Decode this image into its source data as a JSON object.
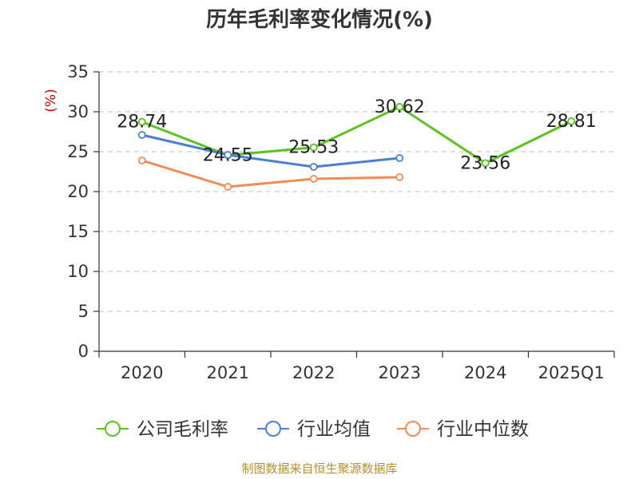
{
  "chart_data": {
    "type": "line",
    "title": "历年毛利率变化情况(%)",
    "ylabel": "(%)",
    "xlabel": "",
    "categories": [
      "2020",
      "2021",
      "2022",
      "2023",
      "2024",
      "2025Q1"
    ],
    "ylim": [
      0,
      35
    ],
    "yticks": [
      0,
      5,
      10,
      15,
      20,
      25,
      30,
      35
    ],
    "grid": "horizontal-dashed",
    "legend_position": "bottom",
    "series": [
      {
        "name": "公司毛利率",
        "color": "#5bc21f",
        "values": [
          28.74,
          24.55,
          25.53,
          30.62,
          23.56,
          28.81
        ],
        "labels": [
          "28.74",
          "24.55",
          "25.53",
          "30.62",
          "23.56",
          "28.81"
        ]
      },
      {
        "name": "行业均值",
        "color": "#4a7fd6",
        "values": [
          27.1,
          24.6,
          23.1,
          24.2,
          null,
          null
        ]
      },
      {
        "name": "行业中位数",
        "color": "#f28c52",
        "values": [
          23.9,
          20.6,
          21.6,
          21.8,
          null,
          null
        ]
      }
    ]
  },
  "footer": {
    "source": "制图数据来自恒生聚源数据库"
  },
  "colors": {
    "unit_label": "#cc0000",
    "axis": "#333333",
    "grid": "#cccccc"
  }
}
